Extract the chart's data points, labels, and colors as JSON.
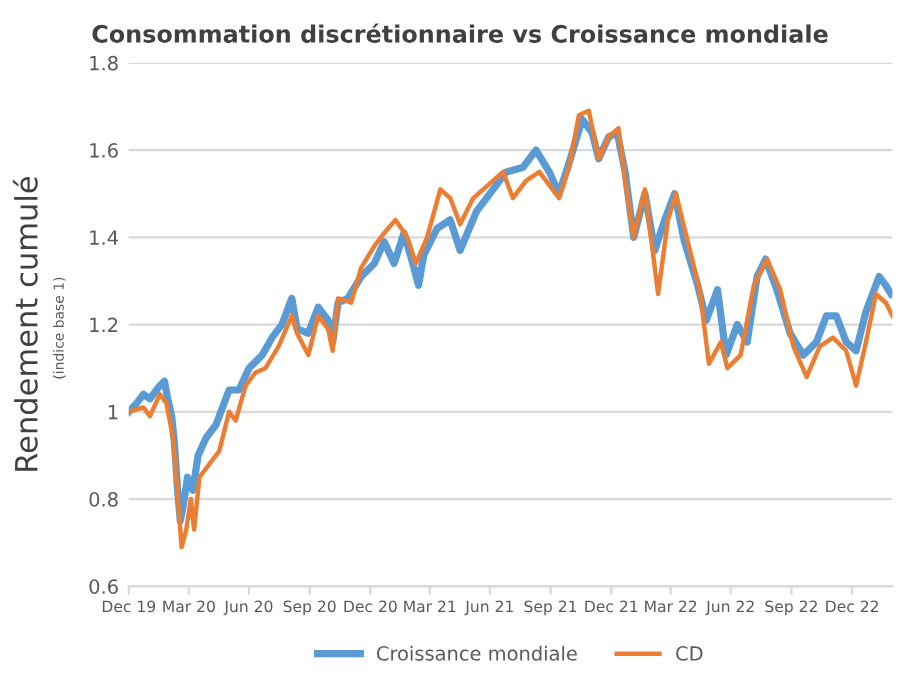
{
  "chart_data": {
    "type": "line",
    "title": "Consommation discrétionnaire vs Croissance mondiale",
    "ylabel": "Rendement cumulé",
    "annotations": [
      "(indice base 1)"
    ],
    "xlim": [
      "2019-12-31",
      "2023-03-02"
    ],
    "ylim": [
      0.6,
      1.8
    ],
    "yticks": [
      0.6,
      0.8,
      1,
      1.2,
      1.4,
      1.6,
      1.8
    ],
    "xticks": [
      {
        "value": "2019-12-31",
        "label": "Dec 19"
      },
      {
        "value": "2020-03-31",
        "label": "Mar 20"
      },
      {
        "value": "2020-06-30",
        "label": "Jun 20"
      },
      {
        "value": "2020-09-30",
        "label": "Sep 20"
      },
      {
        "value": "2020-12-31",
        "label": "Dec 20"
      },
      {
        "value": "2021-03-31",
        "label": "Mar 21"
      },
      {
        "value": "2021-06-30",
        "label": "Jun 21"
      },
      {
        "value": "2021-09-30",
        "label": "Sep 21"
      },
      {
        "value": "2021-12-31",
        "label": "Dec 21"
      },
      {
        "value": "2022-03-31",
        "label": "Mar 22"
      },
      {
        "value": "2022-06-30",
        "label": "Jun 22"
      },
      {
        "value": "2022-09-30",
        "label": "Sep 22"
      },
      {
        "value": "2022-12-31",
        "label": "Dec 22"
      }
    ],
    "grid": "y",
    "legend": "bottom",
    "marker": "none",
    "line_style": "solid",
    "series": [
      {
        "name": "Croissance mondiale",
        "color": "#5b9bd5",
        "x": [
          "2019-12-31",
          "2020-01-12",
          "2020-01-22",
          "2020-02-01",
          "2020-02-16",
          "2020-02-23",
          "2020-02-28",
          "2020-03-05",
          "2020-03-09",
          "2020-03-14",
          "2020-03-18",
          "2020-03-23",
          "2020-03-29",
          "2020-04-06",
          "2020-04-14",
          "2020-04-26",
          "2020-05-11",
          "2020-05-31",
          "2020-06-15",
          "2020-06-30",
          "2020-07-20",
          "2020-08-04",
          "2020-08-19",
          "2020-09-03",
          "2020-09-11",
          "2020-09-28",
          "2020-10-13",
          "2020-10-28",
          "2020-11-04",
          "2020-11-12",
          "2020-11-27",
          "2020-12-17",
          "2021-01-06",
          "2021-01-21",
          "2021-02-05",
          "2021-02-20",
          "2021-03-07",
          "2021-03-14",
          "2021-03-22",
          "2021-04-11",
          "2021-05-01",
          "2021-05-16",
          "2021-06-10",
          "2021-07-05",
          "2021-07-25",
          "2021-08-19",
          "2021-09-08",
          "2021-09-28",
          "2021-10-13",
          "2021-10-28",
          "2021-11-17",
          "2021-12-02",
          "2021-12-12",
          "2021-12-27",
          "2022-01-09",
          "2022-01-21",
          "2022-02-03",
          "2022-02-20",
          "2022-03-07",
          "2022-03-22",
          "2022-04-06",
          "2022-04-21",
          "2022-05-11",
          "2022-05-24",
          "2022-06-10",
          "2022-06-23",
          "2022-07-10",
          "2022-07-25",
          "2022-08-09",
          "2022-08-22",
          "2022-09-08",
          "2022-09-28",
          "2022-10-18",
          "2022-11-07",
          "2022-11-22",
          "2022-12-07",
          "2022-12-22",
          "2023-01-06",
          "2023-01-21",
          "2023-02-10",
          "2023-02-20",
          "2023-02-28"
        ],
        "values": [
          1.0,
          1.02,
          1.04,
          1.03,
          1.06,
          1.07,
          1.03,
          0.99,
          0.93,
          0.82,
          0.75,
          0.79,
          0.85,
          0.82,
          0.9,
          0.94,
          0.97,
          1.05,
          1.05,
          1.1,
          1.13,
          1.17,
          1.2,
          1.26,
          1.19,
          1.18,
          1.24,
          1.21,
          1.16,
          1.25,
          1.26,
          1.31,
          1.34,
          1.39,
          1.34,
          1.41,
          1.33,
          1.29,
          1.36,
          1.42,
          1.44,
          1.37,
          1.46,
          1.51,
          1.55,
          1.56,
          1.6,
          1.55,
          1.5,
          1.57,
          1.67,
          1.64,
          1.58,
          1.63,
          1.64,
          1.55,
          1.4,
          1.5,
          1.37,
          1.44,
          1.5,
          1.39,
          1.29,
          1.21,
          1.28,
          1.13,
          1.2,
          1.16,
          1.31,
          1.35,
          1.28,
          1.18,
          1.13,
          1.16,
          1.22,
          1.22,
          1.16,
          1.14,
          1.23,
          1.31,
          1.29,
          1.27
        ]
      },
      {
        "name": "CD",
        "color": "#ed7d31",
        "x": [
          "2019-12-31",
          "2020-01-22",
          "2020-02-01",
          "2020-02-16",
          "2020-02-26",
          "2020-03-07",
          "2020-03-15",
          "2020-03-20",
          "2020-03-27",
          "2020-04-03",
          "2020-04-08",
          "2020-04-16",
          "2020-05-01",
          "2020-05-16",
          "2020-05-31",
          "2020-06-10",
          "2020-06-25",
          "2020-07-10",
          "2020-07-25",
          "2020-08-14",
          "2020-09-03",
          "2020-09-11",
          "2020-09-28",
          "2020-10-13",
          "2020-10-28",
          "2020-11-04",
          "2020-11-12",
          "2020-12-02",
          "2020-12-17",
          "2021-01-06",
          "2021-01-21",
          "2021-02-07",
          "2021-02-25",
          "2021-03-10",
          "2021-03-27",
          "2021-04-16",
          "2021-05-01",
          "2021-05-16",
          "2021-06-05",
          "2021-07-05",
          "2021-07-20",
          "2021-08-04",
          "2021-08-24",
          "2021-09-13",
          "2021-10-13",
          "2021-10-28",
          "2021-11-12",
          "2021-11-27",
          "2021-12-12",
          "2021-12-27",
          "2022-01-11",
          "2022-01-21",
          "2022-02-03",
          "2022-02-20",
          "2022-03-12",
          "2022-03-27",
          "2022-04-08",
          "2022-04-26",
          "2022-05-14",
          "2022-05-28",
          "2022-06-15",
          "2022-06-25",
          "2022-07-15",
          "2022-08-04",
          "2022-08-24",
          "2022-09-13",
          "2022-10-03",
          "2022-10-23",
          "2022-11-12",
          "2022-12-02",
          "2022-12-22",
          "2023-01-06",
          "2023-01-21",
          "2023-02-05",
          "2023-02-20",
          "2023-03-02"
        ],
        "values": [
          1.0,
          1.01,
          0.99,
          1.04,
          1.02,
          0.94,
          0.79,
          0.69,
          0.73,
          0.8,
          0.73,
          0.85,
          0.88,
          0.91,
          1.0,
          0.98,
          1.06,
          1.09,
          1.1,
          1.15,
          1.22,
          1.18,
          1.13,
          1.22,
          1.19,
          1.14,
          1.26,
          1.25,
          1.33,
          1.38,
          1.41,
          1.44,
          1.4,
          1.34,
          1.4,
          1.51,
          1.49,
          1.43,
          1.49,
          1.53,
          1.55,
          1.49,
          1.53,
          1.55,
          1.49,
          1.56,
          1.68,
          1.69,
          1.58,
          1.63,
          1.65,
          1.53,
          1.4,
          1.51,
          1.27,
          1.44,
          1.5,
          1.39,
          1.28,
          1.11,
          1.16,
          1.1,
          1.13,
          1.29,
          1.35,
          1.28,
          1.15,
          1.08,
          1.15,
          1.17,
          1.14,
          1.06,
          1.16,
          1.27,
          1.25,
          1.22
        ]
      }
    ]
  }
}
